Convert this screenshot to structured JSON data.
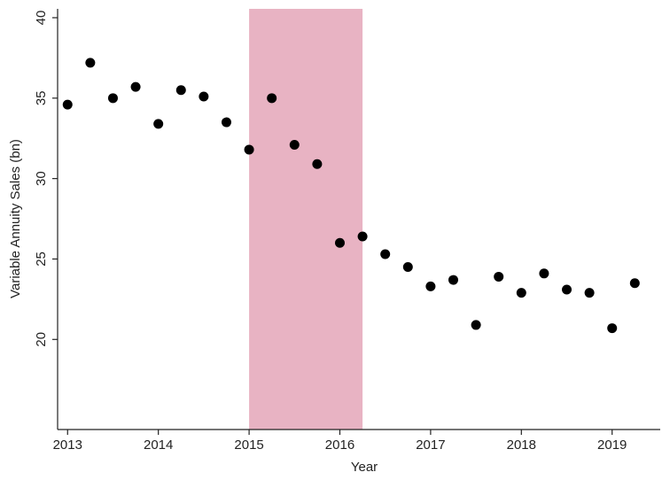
{
  "chart_data": {
    "type": "scatter",
    "x_label": "Year",
    "y_label": "Variable Annuity Sales (bn)",
    "x": [
      2013,
      2013.25,
      2013.5,
      2013.75,
      2014,
      2014.25,
      2014.5,
      2014.75,
      2015,
      2015.25,
      2015.5,
      2015.75,
      2016,
      2016.25,
      2016.5,
      2016.75,
      2017,
      2017.25,
      2017.5,
      2017.75,
      2018,
      2018.25,
      2018.5,
      2018.75,
      2019,
      2019.25
    ],
    "values": [
      34.6,
      37.2,
      35.0,
      35.7,
      33.4,
      35.5,
      35.1,
      33.5,
      31.8,
      35.0,
      32.1,
      30.9,
      26.0,
      26.4,
      25.3,
      24.5,
      23.3,
      23.7,
      20.9,
      23.9,
      22.9,
      24.1,
      23.1,
      22.9,
      20.7,
      23.5
    ],
    "color": "#000000",
    "shaded_region": [
      2015,
      2016.25
    ],
    "shaded_color": "#e8b3c3",
    "xlim": [
      2012.89,
      2019.53
    ],
    "xticks": [
      2013,
      2014,
      2015,
      2016,
      2017,
      2018,
      2019
    ],
    "ylim": [
      14.4,
      40.55
    ],
    "yticks": [
      20,
      25,
      30,
      35,
      40
    ],
    "grid": false
  }
}
